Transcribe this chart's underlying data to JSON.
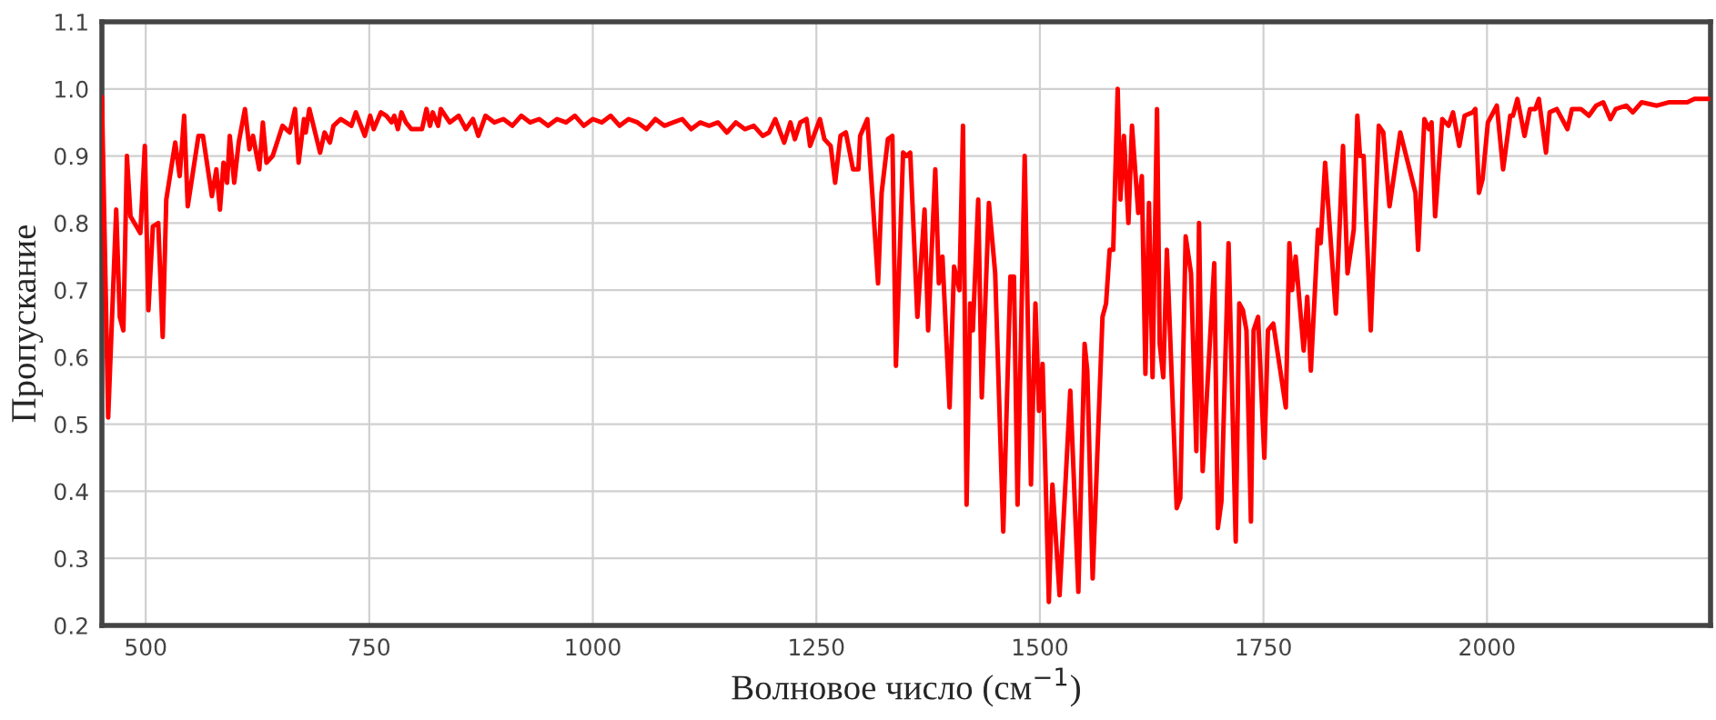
{
  "chart_data": {
    "type": "line",
    "xlabel": "Волновое число (см$^{−1}$)",
    "ylabel": "Пропускание",
    "xlim": [
      451,
      2250
    ],
    "ylim": [
      0.2,
      1.1
    ],
    "xticks": [
      500,
      750,
      1000,
      1250,
      1500,
      1750,
      2000
    ],
    "yticks": [
      0.2,
      0.3,
      0.4,
      0.5,
      0.6,
      0.7,
      0.8,
      0.9,
      {
        "value": 1.0,
        "label": "1.0"
      },
      1.1
    ],
    "grid": true,
    "marker": "none",
    "line_style": "solid",
    "series": [
      {
        "color": "#ff0000",
        "x": [
          451,
          458,
          467,
          471,
          475,
          479,
          483,
          494,
          499,
          503,
          508,
          514,
          519,
          523,
          533,
          538,
          543,
          547,
          559,
          564,
          574,
          579,
          583,
          587,
          591,
          594,
          599,
          604,
          611,
          616,
          620,
          627,
          631,
          635,
          642,
          653,
          661,
          667,
          671,
          677,
          679,
          683,
          695,
          700,
          706,
          710,
          718,
          730,
          735,
          745,
          751,
          755,
          763,
          769,
          775,
          778,
          782,
          786,
          791,
          797,
          809,
          814,
          818,
          821,
          827,
          830,
          840,
          850,
          858,
          866,
          872,
          880,
          890,
          900,
          910,
          920,
          930,
          940,
          950,
          960,
          970,
          980,
          990,
          1000,
          1010,
          1020,
          1030,
          1040,
          1050,
          1060,
          1070,
          1080,
          1090,
          1100,
          1110,
          1120,
          1130,
          1140,
          1150,
          1160,
          1170,
          1180,
          1190,
          1197,
          1204,
          1214,
          1221,
          1226,
          1232,
          1239,
          1243,
          1254,
          1259,
          1266,
          1271,
          1277,
          1283,
          1291,
          1297,
          1299,
          1307,
          1313,
          1319,
          1323,
          1330,
          1335,
          1339,
          1347,
          1351,
          1355,
          1363,
          1371,
          1375,
          1383,
          1387,
          1391,
          1399,
          1404,
          1410,
          1414,
          1418,
          1422,
          1425,
          1431,
          1435,
          1443,
          1450,
          1459,
          1467,
          1471,
          1475,
          1483,
          1490,
          1495,
          1499,
          1503,
          1510,
          1514,
          1522,
          1534,
          1543,
          1550,
          1553,
          1559,
          1570,
          1574,
          1578,
          1582,
          1587,
          1590,
          1594,
          1599,
          1603,
          1610,
          1614,
          1618,
          1622,
          1626,
          1631,
          1634,
          1638,
          1642,
          1653,
          1657,
          1663,
          1669,
          1675,
          1678,
          1682,
          1695,
          1699,
          1703,
          1711,
          1719,
          1723,
          1727,
          1731,
          1736,
          1739,
          1744,
          1751,
          1755,
          1761,
          1775,
          1779,
          1782,
          1786,
          1795,
          1799,
          1803,
          1811,
          1814,
          1819,
          1831,
          1839,
          1844,
          1851,
          1855,
          1858,
          1862,
          1870,
          1879,
          1884,
          1891,
          1903,
          1920,
          1923,
          1930,
          1935,
          1938,
          1942,
          1950,
          1957,
          1962,
          1969,
          1975,
          1984,
          1987,
          1991,
          1995,
          2001,
          2011,
          2018,
          2026,
          2029,
          2034,
          2042,
          2048,
          2054,
          2058,
          2066,
          2070,
          2078,
          2090,
          2095,
          2105,
          2114,
          2122,
          2130,
          2138,
          2144,
          2156,
          2163,
          2173,
          2190,
          2203,
          2224,
          2232,
          2248
        ],
        "values": [
          0.988,
          0.51,
          0.82,
          0.66,
          0.64,
          0.9,
          0.81,
          0.785,
          0.915,
          0.67,
          0.795,
          0.8,
          0.63,
          0.835,
          0.92,
          0.87,
          0.96,
          0.825,
          0.93,
          0.93,
          0.84,
          0.88,
          0.82,
          0.89,
          0.86,
          0.93,
          0.86,
          0.92,
          0.97,
          0.91,
          0.93,
          0.88,
          0.95,
          0.89,
          0.9,
          0.945,
          0.935,
          0.97,
          0.89,
          0.955,
          0.935,
          0.97,
          0.905,
          0.935,
          0.92,
          0.945,
          0.955,
          0.945,
          0.965,
          0.93,
          0.96,
          0.94,
          0.965,
          0.96,
          0.95,
          0.96,
          0.94,
          0.965,
          0.95,
          0.94,
          0.94,
          0.97,
          0.945,
          0.965,
          0.945,
          0.97,
          0.95,
          0.96,
          0.94,
          0.955,
          0.93,
          0.96,
          0.95,
          0.955,
          0.945,
          0.96,
          0.95,
          0.955,
          0.945,
          0.955,
          0.95,
          0.96,
          0.945,
          0.955,
          0.95,
          0.96,
          0.945,
          0.955,
          0.95,
          0.94,
          0.955,
          0.945,
          0.95,
          0.955,
          0.94,
          0.95,
          0.945,
          0.95,
          0.935,
          0.95,
          0.94,
          0.945,
          0.93,
          0.935,
          0.955,
          0.92,
          0.95,
          0.925,
          0.95,
          0.955,
          0.915,
          0.955,
          0.925,
          0.915,
          0.86,
          0.93,
          0.935,
          0.88,
          0.88,
          0.93,
          0.955,
          0.835,
          0.71,
          0.845,
          0.925,
          0.93,
          0.587,
          0.905,
          0.9,
          0.905,
          0.66,
          0.82,
          0.64,
          0.88,
          0.71,
          0.75,
          0.525,
          0.735,
          0.7,
          0.945,
          0.38,
          0.68,
          0.64,
          0.835,
          0.54,
          0.83,
          0.725,
          0.34,
          0.72,
          0.72,
          0.38,
          0.9,
          0.41,
          0.68,
          0.52,
          0.59,
          0.235,
          0.41,
          0.245,
          0.55,
          0.25,
          0.62,
          0.58,
          0.27,
          0.66,
          0.68,
          0.76,
          0.76,
          1.0,
          0.835,
          0.93,
          0.8,
          0.945,
          0.815,
          0.87,
          0.575,
          0.83,
          0.57,
          0.97,
          0.62,
          0.57,
          0.76,
          0.375,
          0.39,
          0.78,
          0.725,
          0.46,
          0.8,
          0.43,
          0.74,
          0.345,
          0.385,
          0.77,
          0.325,
          0.68,
          0.67,
          0.64,
          0.355,
          0.64,
          0.66,
          0.45,
          0.64,
          0.65,
          0.525,
          0.77,
          0.7,
          0.75,
          0.61,
          0.69,
          0.58,
          0.79,
          0.77,
          0.89,
          0.665,
          0.915,
          0.725,
          0.79,
          0.96,
          0.9,
          0.9,
          0.64,
          0.945,
          0.935,
          0.825,
          0.935,
          0.845,
          0.76,
          0.955,
          0.94,
          0.95,
          0.81,
          0.955,
          0.945,
          0.965,
          0.915,
          0.96,
          0.965,
          0.97,
          0.845,
          0.865,
          0.95,
          0.975,
          0.88,
          0.96,
          0.96,
          0.985,
          0.93,
          0.97,
          0.97,
          0.985,
          0.905,
          0.965,
          0.97,
          0.94,
          0.97,
          0.97,
          0.96,
          0.975,
          0.98,
          0.955,
          0.97,
          0.975,
          0.965,
          0.98,
          0.975,
          0.98,
          0.98,
          0.985,
          0.985
        ]
      }
    ]
  }
}
